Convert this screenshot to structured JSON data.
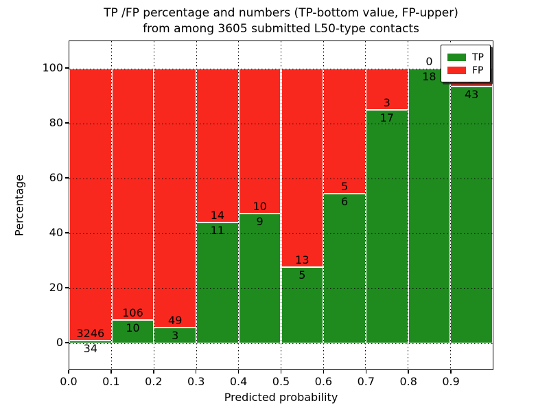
{
  "title": {
    "line1": "TP /FP percentage and numbers (TP-bottom value, FP-upper)",
    "line2": "from among 3605 submitted L50-type contacts"
  },
  "axes": {
    "xlabel": "Predicted probability",
    "ylabel": "Percentage",
    "x_tick_labels": [
      "0.0",
      "0.1",
      "0.2",
      "0.3",
      "0.4",
      "0.5",
      "0.6",
      "0.7",
      "0.8",
      "0.9"
    ],
    "y_tick_labels": [
      "0",
      "20",
      "40",
      "60",
      "80",
      "100"
    ],
    "y_tick_values": [
      0,
      20,
      40,
      60,
      80,
      100
    ],
    "xlim": [
      0.0,
      1.0
    ],
    "ylim": [
      -10,
      110
    ],
    "grid": "dotted"
  },
  "legend": {
    "items": [
      {
        "label": "TP",
        "color": "#1f8b1f"
      },
      {
        "label": "FP",
        "color": "#f8281e"
      }
    ],
    "position": "upper right"
  },
  "colors": {
    "tp_green": "#1f8b1f",
    "fp_red": "#f8281e",
    "bar_edge": "#ffffff",
    "text": "#000000"
  },
  "chart_data": {
    "type": "bar",
    "stacked": true,
    "normalized": "each bar scaled to 100%",
    "total_contacts_in_title": 3605,
    "bin_width": 0.1,
    "categories": [
      "0.0-0.1",
      "0.1-0.2",
      "0.2-0.3",
      "0.3-0.4",
      "0.4-0.5",
      "0.5-0.6",
      "0.6-0.7",
      "0.7-0.8",
      "0.8-0.9",
      "0.9-1.0"
    ],
    "series": [
      {
        "name": "TP",
        "counts": [
          34,
          10,
          3,
          11,
          9,
          5,
          6,
          17,
          18,
          43
        ]
      },
      {
        "name": "FP",
        "counts": [
          3246,
          106,
          49,
          14,
          10,
          13,
          5,
          3,
          0,
          3
        ]
      }
    ],
    "tp_percent_of_bar": [
      1.04,
      8.62,
      5.77,
      44.0,
      47.37,
      27.78,
      54.55,
      85.0,
      100.0,
      93.48
    ],
    "title": "TP /FP percentage and numbers (TP-bottom value, FP-upper) from among 3605 submitted L50-type contacts",
    "xlabel": "Predicted probability",
    "ylabel": "Percentage"
  }
}
